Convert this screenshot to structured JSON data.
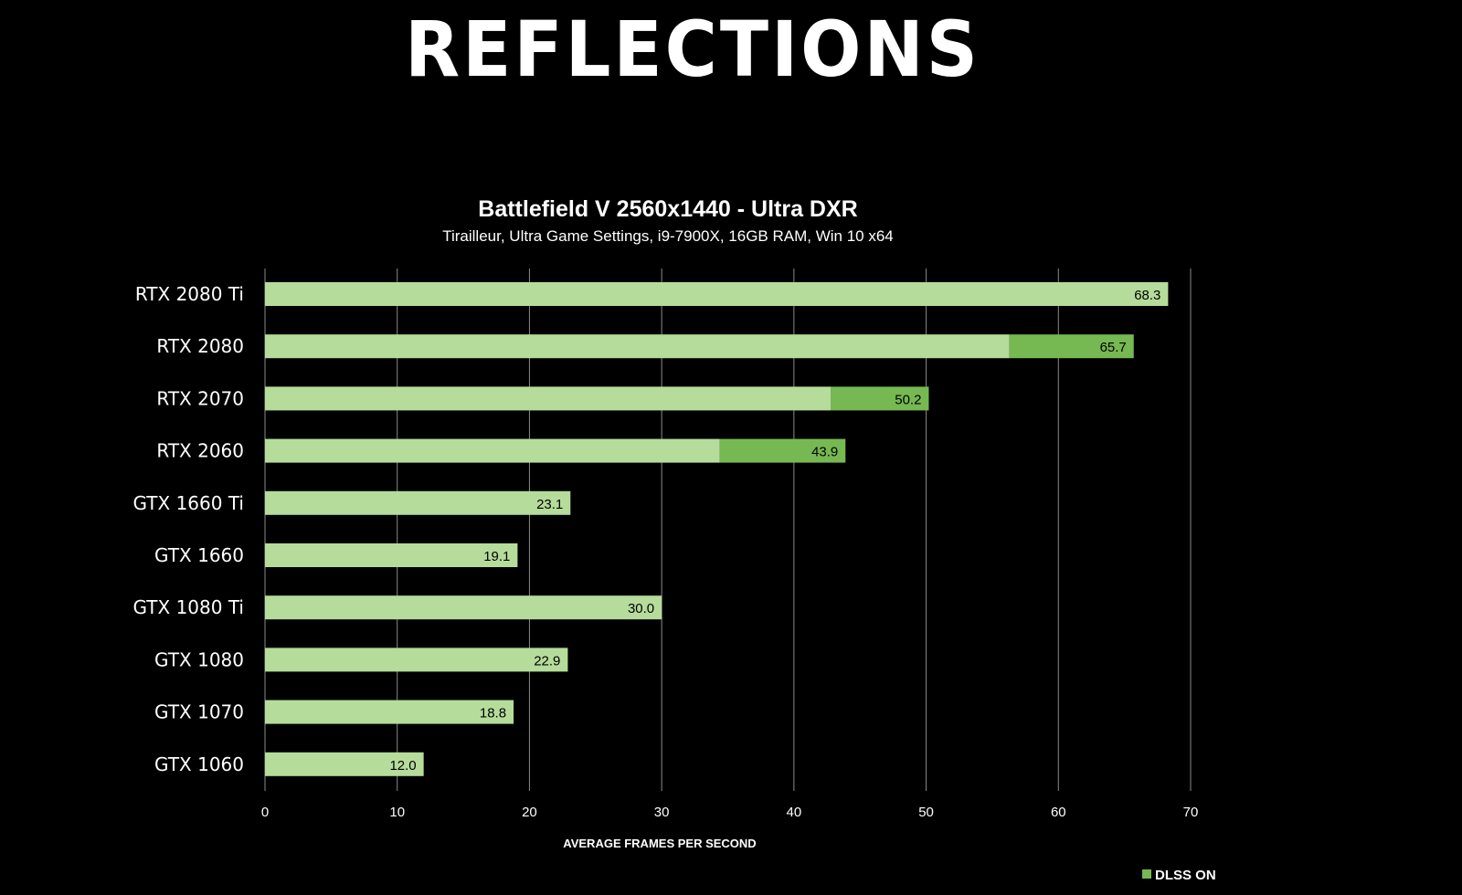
{
  "slide": {
    "title": "REFLECTIONS"
  },
  "chart_data": {
    "type": "bar",
    "orientation": "horizontal",
    "stacked": true,
    "title": "Battlefield V 2560x1440 - Ultra DXR",
    "subtitle": "Tirailleur, Ultra Game Settings, i9-7900X, 16GB RAM, Win 10 x64",
    "xlabel": "AVERAGE FRAMES PER SECOND",
    "ylabel": "",
    "xlim": [
      0,
      70
    ],
    "xticks": [
      0,
      10,
      20,
      30,
      40,
      50,
      60,
      70
    ],
    "grid": "vertical",
    "categories": [
      "RTX 2080 Ti",
      "RTX 2080",
      "RTX 2070",
      "RTX 2060",
      "GTX 1660 Ti",
      "GTX 1660",
      "GTX 1080 Ti",
      "GTX 1080",
      "GTX 1070",
      "GTX 1060"
    ],
    "series": [
      {
        "values": [
          68.3,
          56.3,
          42.8,
          34.4,
          23.1,
          19.1,
          30.0,
          22.9,
          18.8,
          12.0
        ],
        "color": "#b5dc9b"
      },
      {
        "name": "DLSS ON",
        "values": [
          0,
          9.4,
          7.4,
          9.5,
          0,
          0,
          0,
          0,
          0,
          0
        ],
        "color": "#76b852"
      }
    ],
    "data_labels": [
      "68.3",
      "65.7",
      "50.2",
      "43.9",
      "23.1",
      "19.1",
      "30.0",
      "22.9",
      "18.8",
      "12.0"
    ],
    "legend": {
      "position": "bottom-right",
      "entries": [
        {
          "label": "DLSS ON",
          "color": "#76b852"
        }
      ]
    },
    "colors": {
      "background": "#000000",
      "gridline": "#8a8a8a",
      "text": "#ffffff",
      "data_label": "#000000"
    }
  }
}
